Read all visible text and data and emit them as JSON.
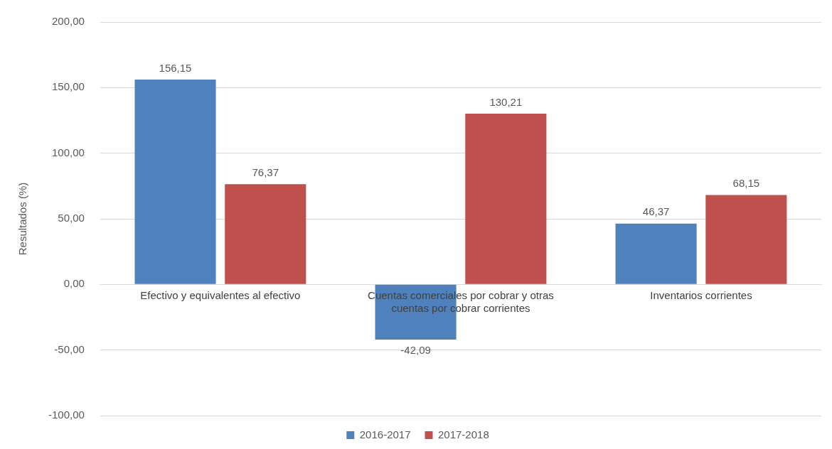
{
  "chart_data": {
    "type": "bar",
    "ylabel": "Resultados (%)",
    "categories": [
      "Efectivo y equivalentes al efectivo",
      "Cuentas comerciales por cobrar y otras cuentas por cobrar corrientes",
      "Inventarios corrientes"
    ],
    "series": [
      {
        "name": "2016-2017",
        "color": "#4f81bd",
        "values": [
          156.15,
          -42.09,
          46.37
        ],
        "value_labels": [
          "156,15",
          "-42,09",
          "46,37"
        ]
      },
      {
        "name": "2017-2018",
        "color": "#c0504d",
        "values": [
          76.37,
          130.21,
          68.15
        ],
        "value_labels": [
          "76,37",
          "130,21",
          "68,15"
        ]
      }
    ],
    "ylim": [
      -100,
      200
    ],
    "yticks": [
      {
        "value": -100,
        "label": "-100,00"
      },
      {
        "value": -50,
        "label": "-50,00"
      },
      {
        "value": 0,
        "label": "0,00"
      },
      {
        "value": 50,
        "label": "50,00"
      },
      {
        "value": 100,
        "label": "100,00"
      },
      {
        "value": 150,
        "label": "150,00"
      },
      {
        "value": 200,
        "label": "200,00"
      }
    ],
    "grid": "y",
    "legend": "bottom"
  }
}
